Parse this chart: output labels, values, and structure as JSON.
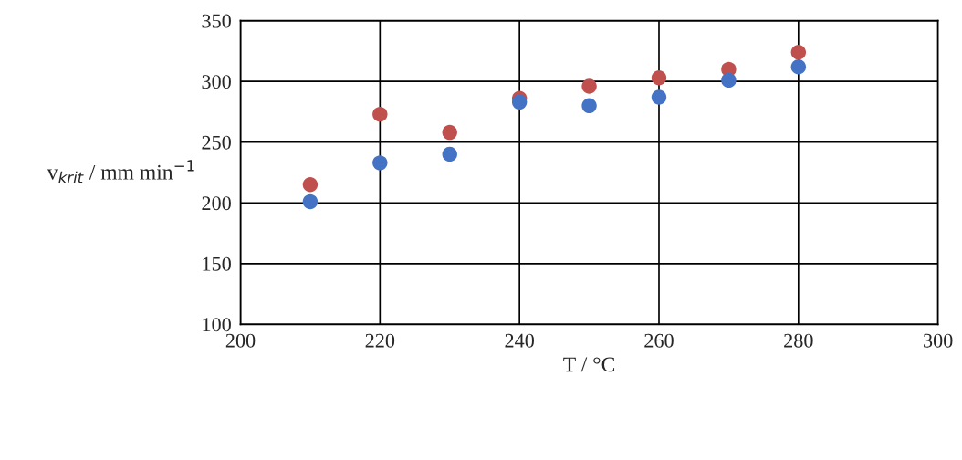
{
  "chart_data": {
    "type": "scatter",
    "xlabel": "T / °C",
    "ylabel": "v$_{krit}$ / mm min$^{−1}$",
    "x": [
      210,
      220,
      230,
      240,
      250,
      260,
      270,
      280
    ],
    "series": [
      {
        "color": "#4472c4",
        "values": [
          201,
          233,
          240,
          283,
          280,
          287,
          301,
          312
        ]
      },
      {
        "color": "#c0504d",
        "values": [
          215,
          273,
          258,
          286,
          296,
          303,
          310,
          324
        ]
      }
    ],
    "xlim": [
      200,
      300
    ],
    "xticks": [
      200,
      220,
      240,
      260,
      280,
      300
    ],
    "ylim": [
      100,
      350
    ],
    "yticks": [
      100,
      150,
      200,
      250,
      300,
      350
    ],
    "grid": true,
    "marker": "circle"
  }
}
